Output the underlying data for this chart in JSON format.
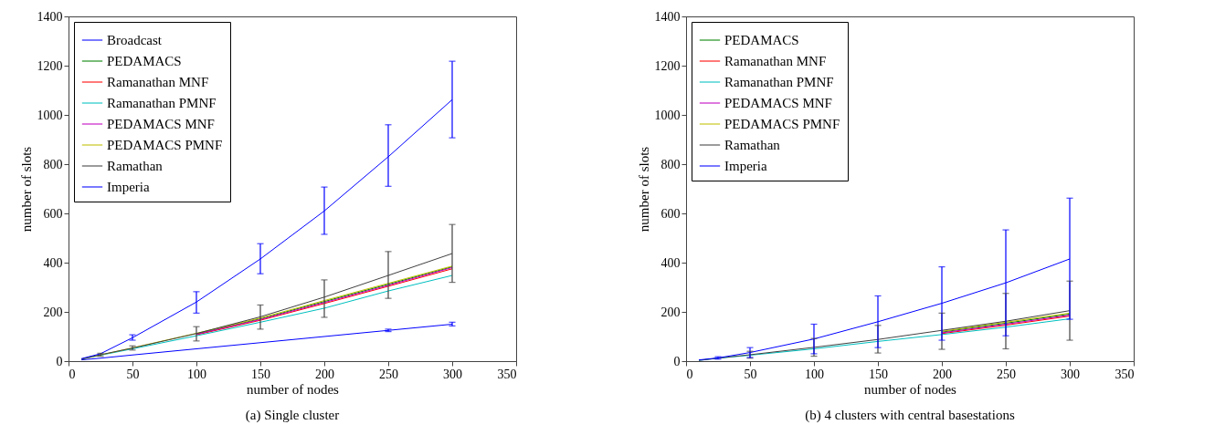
{
  "chart_data": [
    {
      "type": "line",
      "xlabel": "number of nodes",
      "ylabel": "number of slots",
      "annotations": [
        "(a) Single cluster"
      ],
      "x": [
        10,
        25,
        50,
        100,
        150,
        200,
        250,
        300
      ],
      "xlim": [
        0,
        350
      ],
      "xticks": [
        0,
        50,
        100,
        150,
        200,
        250,
        300,
        350
      ],
      "ylim": [
        0,
        1400
      ],
      "yticks": [
        0,
        200,
        400,
        600,
        800,
        1000,
        1200,
        1400
      ],
      "legend": "top left",
      "series": [
        {
          "name": "Broadcast",
          "color": "#0000ff",
          "values": [
            5,
            12,
            25,
            50,
            75,
            100,
            125,
            150
          ],
          "errors": [
            null,
            null,
            null,
            null,
            null,
            null,
            [
              120,
              130
            ],
            [
              143,
              158
            ]
          ]
        },
        {
          "name": "PEDAMACS",
          "color": "#008000",
          "values": [
            null,
            null,
            null,
            111,
            172,
            242,
            312,
            383
          ]
        },
        {
          "name": "Ramanathan MNF",
          "color": "#ff0000",
          "values": [
            null,
            null,
            null,
            107,
            166,
            234,
            304,
            375
          ]
        },
        {
          "name": "Ramanathan PMNF",
          "color": "#00bfbf",
          "values": [
            8,
            24,
            50,
            103,
            158,
            215,
            285,
            348
          ]
        },
        {
          "name": "PEDAMACS MNF",
          "color": "#bf00bf",
          "values": [
            null,
            null,
            null,
            109,
            169,
            238,
            308,
            380
          ]
        },
        {
          "name": "PEDAMACS PMNF",
          "color": "#bfbf00",
          "values": [
            8,
            25,
            54,
            113,
            175,
            246,
            316,
            386
          ]
        },
        {
          "name": "Ramathan",
          "color": "#404040",
          "values": [
            8,
            26,
            53,
            112,
            180,
            260,
            348,
            437
          ],
          "errors": [
            null,
            [
              20,
              32
            ],
            [
              45,
              62
            ],
            [
              82,
              140
            ],
            [
              130,
              228
            ],
            [
              178,
              330
            ],
            [
              255,
              445
            ],
            [
              320,
              555
            ]
          ]
        },
        {
          "name": "Imperia",
          "color": "#0000ff",
          "values": [
            10,
            30,
            95,
            240,
            415,
            610,
            830,
            1062
          ],
          "errors": [
            null,
            null,
            [
              85,
              107
            ],
            [
              195,
              282
            ],
            [
              355,
              477
            ],
            [
              515,
              707
            ],
            [
              710,
              960
            ],
            [
              907,
              1218
            ]
          ]
        }
      ]
    },
    {
      "type": "line",
      "xlabel": "number of nodes",
      "ylabel": "number of slots",
      "annotations": [
        "(b) 4 clusters with central basestations"
      ],
      "x": [
        10,
        25,
        50,
        100,
        150,
        200,
        250,
        300
      ],
      "xlim": [
        0,
        350
      ],
      "xticks": [
        0,
        50,
        100,
        150,
        200,
        250,
        300,
        350
      ],
      "ylim": [
        0,
        1400
      ],
      "yticks": [
        0,
        200,
        400,
        600,
        800,
        1000,
        1200,
        1400
      ],
      "legend": "top left",
      "series": [
        {
          "name": "PEDAMACS",
          "color": "#008000",
          "values": [
            null,
            null,
            null,
            null,
            null,
            118,
            154,
            191
          ]
        },
        {
          "name": "Ramanathan MNF",
          "color": "#ff0000",
          "values": [
            null,
            null,
            null,
            null,
            null,
            112,
            146,
            183
          ]
        },
        {
          "name": "Ramanathan PMNF",
          "color": "#00bfbf",
          "values": [
            3,
            12,
            24,
            50,
            80,
            108,
            138,
            172
          ]
        },
        {
          "name": "PEDAMACS MNF",
          "color": "#bf00bf",
          "values": [
            null,
            null,
            null,
            null,
            null,
            115,
            150,
            187
          ]
        },
        {
          "name": "PEDAMACS PMNF",
          "color": "#bfbf00",
          "values": [
            null,
            null,
            null,
            null,
            null,
            121,
            158,
            195
          ]
        },
        {
          "name": "Ramathan",
          "color": "#404040",
          "values": [
            3,
            12,
            26,
            56,
            88,
            125,
            162,
            205
          ],
          "errors": [
            null,
            null,
            [
              12,
              40
            ],
            [
              20,
              92
            ],
            [
              33,
              145
            ],
            [
              48,
              195
            ],
            [
              50,
              275
            ],
            [
              85,
              325
            ]
          ]
        },
        {
          "name": "Imperia",
          "color": "#0000ff",
          "values": [
            5,
            13,
            35,
            90,
            160,
            235,
            318,
            415
          ],
          "errors": [
            null,
            [
              8,
              18
            ],
            [
              15,
              55
            ],
            [
              30,
              150
            ],
            [
              55,
              265
            ],
            [
              85,
              383
            ],
            [
              103,
              533
            ],
            [
              170,
              662
            ]
          ]
        }
      ]
    }
  ]
}
